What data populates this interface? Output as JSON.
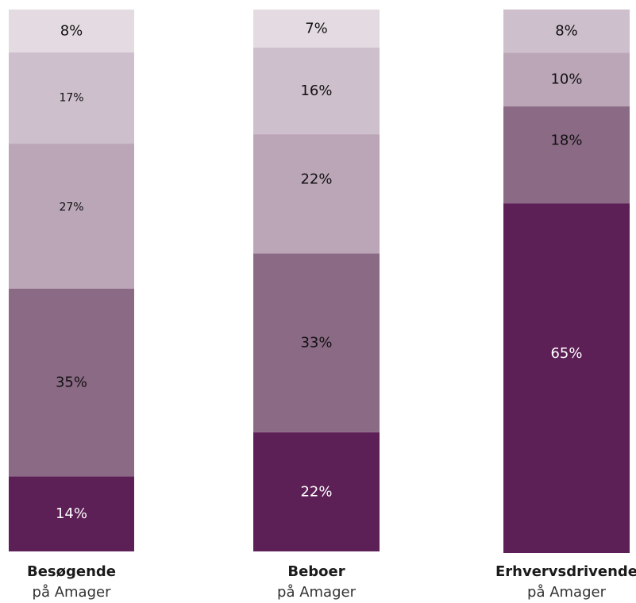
{
  "chart_data": {
    "type": "bar",
    "stacked": true,
    "categories": [
      {
        "title": "Besøgende",
        "subtitle": "på Amager"
      },
      {
        "title": "Beboer",
        "subtitle": "på Amager"
      },
      {
        "title": "Erhvervsdrivende",
        "subtitle": "på Amager"
      }
    ],
    "series": [
      {
        "values": [
          14,
          22,
          65
        ],
        "labels": [
          "14%",
          "22%",
          "65%"
        ]
      },
      {
        "values": [
          35,
          33,
          18
        ],
        "labels": [
          "35%",
          "33%",
          "18%"
        ]
      },
      {
        "values": [
          27,
          22,
          10
        ],
        "labels": [
          "27%",
          "22%",
          "10%"
        ]
      },
      {
        "values": [
          17,
          16,
          8
        ],
        "labels": [
          "17%",
          "16%",
          "8%"
        ]
      },
      {
        "values": [
          8,
          7,
          null
        ],
        "labels": [
          "8%",
          "7%",
          ""
        ]
      }
    ],
    "colors": [
      "#5c2056",
      "#8b6a85",
      "#bba6b8",
      "#cdbfcc",
      "#e3dbe1"
    ],
    "label_colors": [
      "#ffffff",
      "#111111",
      "#111111",
      "#111111",
      "#111111"
    ],
    "ylim": [
      0,
      100
    ],
    "grid": false,
    "legend": "none"
  }
}
